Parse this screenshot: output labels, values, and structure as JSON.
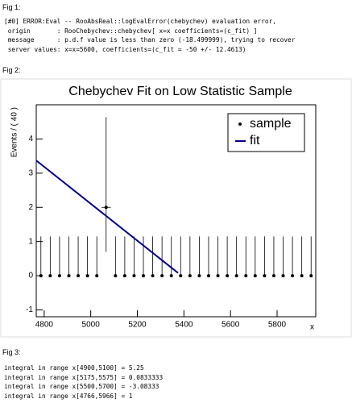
{
  "fig1": {
    "label": "Fig 1:",
    "lines": [
      "[#0] ERROR:Eval -- RooAbsReal::logEvalError(chebychev) evaluation error,",
      " origin       : RooChebychev::chebychev[ x=x coefficients=(c_fit) ]",
      " message      : p.d.f value is less than zero (-18.499999), trying to recover",
      " server values: x=x=5600, coefficients=(c_fit = -50 +/- 12.4613)"
    ]
  },
  "fig2": {
    "label": "Fig 2:"
  },
  "chart_data": {
    "type": "errorbar-line",
    "title": "Chebychev Fit on Low Statistic Sample",
    "x_label": "x",
    "y_label": "Events / ( 40 )",
    "xlim": [
      4766,
      5966
    ],
    "ylim": [
      -1.2,
      5.0
    ],
    "xticks": [
      4800,
      5000,
      5200,
      5400,
      5600,
      5800
    ],
    "yticks": [
      -1,
      0,
      1,
      2,
      3,
      4
    ],
    "legend": "top-right",
    "series": [
      {
        "name": "sample",
        "color": "#000000",
        "x": [
          4786,
          4826,
          4866,
          4906,
          4946,
          4986,
          5026,
          5066,
          5106,
          5146,
          5186,
          5226,
          5266,
          5306,
          5346,
          5386,
          5426,
          5466,
          5506,
          5546,
          5586,
          5626,
          5666,
          5706,
          5746,
          5786,
          5826,
          5866,
          5906,
          5946
        ],
        "values": [
          0,
          0,
          0,
          0,
          0,
          0,
          0,
          2,
          0,
          0,
          0,
          0,
          0,
          0,
          0,
          0,
          0,
          0,
          0,
          0,
          0,
          0,
          0,
          0,
          0,
          0,
          0,
          0,
          0,
          0
        ],
        "errors_low": [
          0,
          0,
          0,
          0,
          0,
          0,
          0,
          1.3,
          0,
          0,
          0,
          0,
          0,
          0,
          0,
          0,
          0,
          0,
          0,
          0,
          0,
          0,
          0,
          0,
          0,
          0,
          0,
          0,
          0,
          0
        ],
        "errors_high": [
          1.15,
          1.15,
          1.15,
          1.15,
          1.15,
          1.15,
          1.15,
          2.64,
          1.15,
          1.15,
          1.15,
          1.15,
          1.15,
          1.15,
          1.15,
          1.15,
          1.15,
          1.15,
          1.15,
          1.15,
          1.15,
          1.15,
          1.15,
          1.15,
          1.15,
          1.15,
          1.15,
          1.15,
          1.15,
          1.15
        ]
      },
      {
        "name": "fit",
        "color": "#00008b",
        "x": [
          4766,
          5375
        ],
        "values": [
          3.37,
          0.08
        ]
      }
    ]
  },
  "fig3": {
    "label": "Fig 3:",
    "lines": [
      "integral in range x[4900,5100] = 5.25",
      "integral in range x[5175,5575] = 0.0833333",
      "integral in range x[5500,5700] = -3.08333",
      "integral in range x[4766,5966] = 1"
    ]
  }
}
